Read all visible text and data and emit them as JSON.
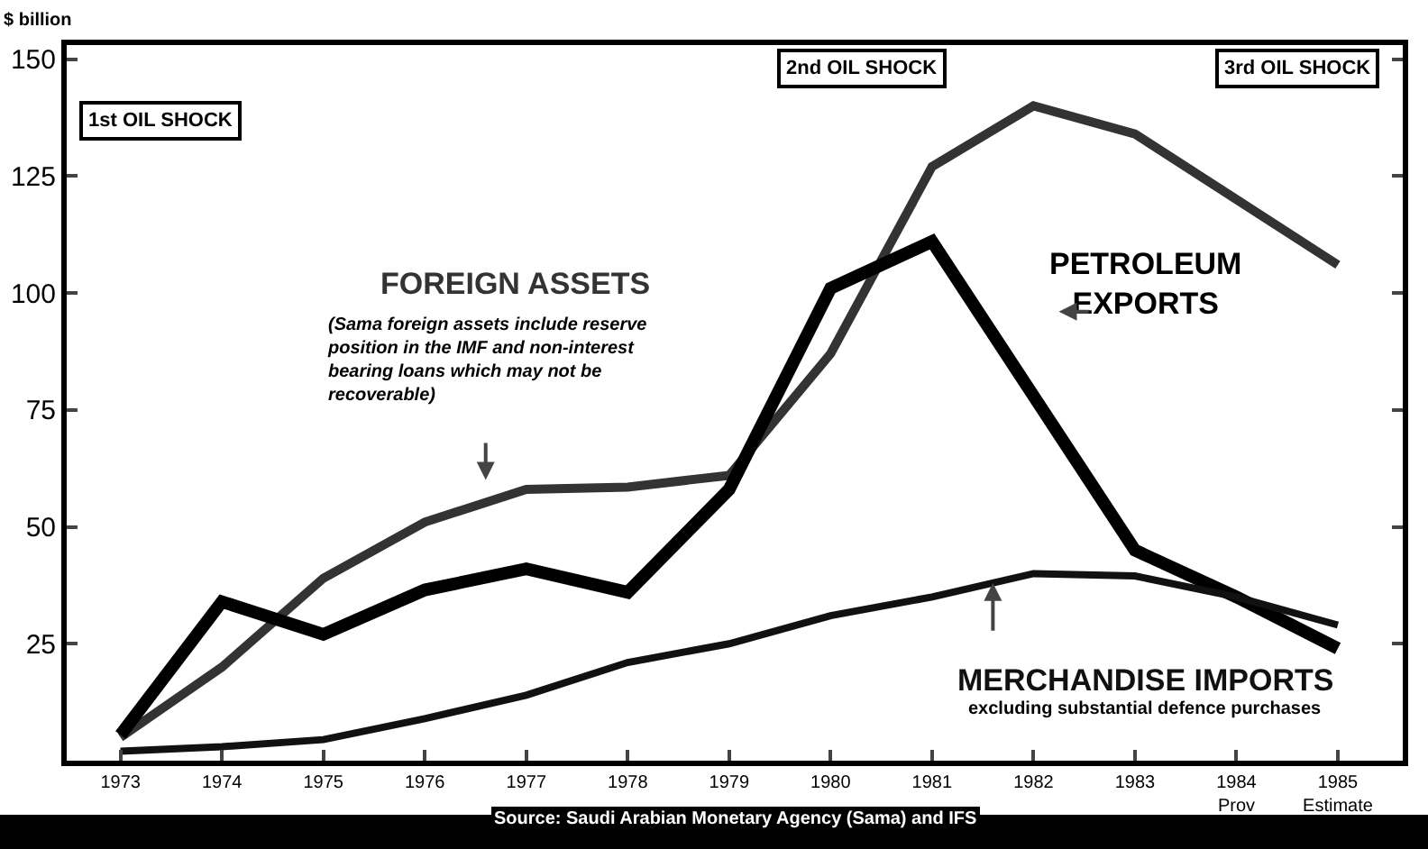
{
  "chart_data": {
    "type": "line",
    "ylabel": "$ billion",
    "x": [
      1973,
      1974,
      1975,
      1976,
      1977,
      1978,
      1979,
      1980,
      1981,
      1982,
      1983,
      1984,
      1985
    ],
    "xlim": [
      1972.47,
      1985.64
    ],
    "xticks": [
      1973,
      1974,
      1975,
      1976,
      1977,
      1978,
      1979,
      1980,
      1981,
      1982,
      1983,
      {
        "value": 1984,
        "label": "1984\nProv"
      },
      {
        "value": 1985,
        "label": "1985\nEstimate"
      }
    ],
    "ylim": [
      0,
      153
    ],
    "yticks": [
      25,
      50,
      75,
      100,
      125,
      150
    ],
    "grid": false,
    "legend": false,
    "marker": "none",
    "line_style": "solid",
    "series": [
      {
        "name": "FOREIGN ASSETS",
        "color": "#333333",
        "values": [
          5,
          20,
          39,
          51,
          58,
          58.5,
          61,
          87,
          127,
          140,
          134,
          120,
          106
        ]
      },
      {
        "name": "PETROLEUM EXPORTS",
        "color": "#000000",
        "values": [
          5.5,
          34,
          27,
          36.5,
          41,
          36,
          58,
          101,
          111,
          78,
          45,
          35,
          24
        ]
      },
      {
        "name": "MERCHANDISE IMPORTS",
        "color": "#111111",
        "values": [
          2,
          3,
          4.5,
          9,
          14,
          21,
          25,
          31,
          35,
          40,
          39.5,
          35,
          29
        ]
      }
    ],
    "annotations": [
      "1st OIL SHOCK",
      "2nd OIL SHOCK",
      "3rd OIL SHOCK",
      "(Sama foreign assets include reserve position in the IMF and non-interest bearing loans which may not be recoverable)",
      "excluding substantial defence purchases",
      "Source: Saudi Arabian Monetary Agency (Sama) and IFS"
    ]
  }
}
